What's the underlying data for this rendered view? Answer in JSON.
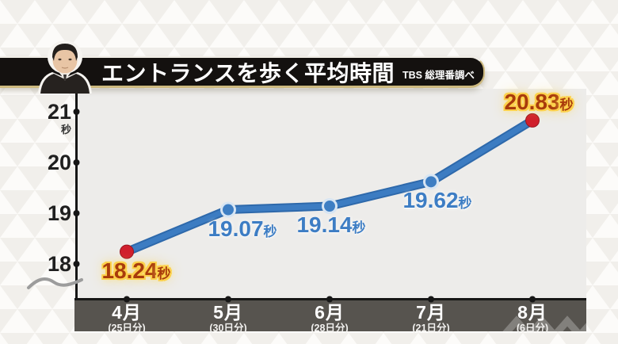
{
  "header": {
    "title": "エントランスを歩く平均時間",
    "source": "TBS 総理番調べ"
  },
  "chart_data": {
    "type": "line",
    "title": "エントランスを歩く平均時間",
    "unit": "秒",
    "categories": [
      "4月",
      "5月",
      "6月",
      "7月",
      "8月"
    ],
    "category_sublabels": [
      "(25日分)",
      "(30日分)",
      "(28日分)",
      "(21日分)",
      "(6日分)"
    ],
    "values": [
      18.24,
      19.07,
      19.14,
      19.62,
      20.83
    ],
    "point_labels": [
      "18.24",
      "19.07",
      "19.14",
      "19.62",
      "20.83"
    ],
    "point_styles": [
      "red",
      "blue",
      "blue",
      "blue",
      "red"
    ],
    "label_positions": [
      "below",
      "below",
      "below",
      "below",
      "above"
    ],
    "ylim": [
      18,
      21
    ],
    "yticks": [
      18,
      19,
      20,
      21
    ],
    "ytick_labels": [
      "18",
      "19",
      "20",
      "21"
    ],
    "axis_break": true,
    "grid": false,
    "legend": "none",
    "colors": {
      "line": "#3c7cc2",
      "line_edge": "#2e69ab",
      "point_blue": "#3e7ec3",
      "point_blue_halo": "#d7e5f3",
      "point_red": "#d01f2d",
      "label_blue": "#3d7dc4",
      "label_red": "#a93b0b",
      "label_glow": "#fcd14c",
      "axis": "#161616",
      "plot_bg": "#edecea",
      "xbar_bg": "#57544f"
    }
  }
}
